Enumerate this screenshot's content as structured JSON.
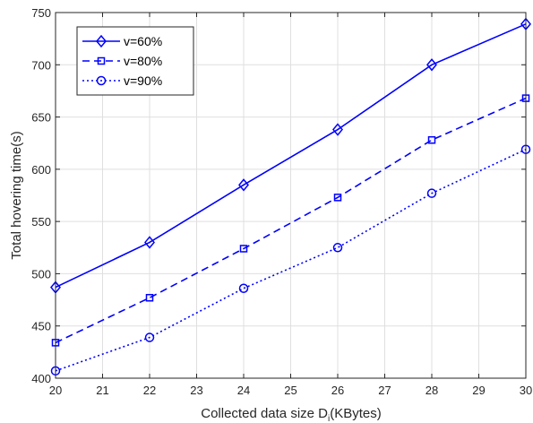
{
  "chart_data": {
    "type": "line",
    "xlabel": "Collected data size D",
    "xlabel_sub": "i",
    "xlabel_suffix": "(KBytes)",
    "ylabel": "Total hovering time(s)",
    "xlim": [
      20,
      30
    ],
    "ylim": [
      400,
      750
    ],
    "xticks": [
      "20",
      "21",
      "22",
      "23",
      "24",
      "25",
      "26",
      "27",
      "28",
      "29",
      "30"
    ],
    "yticks": [
      "400",
      "450",
      "500",
      "550",
      "600",
      "650",
      "700",
      "750"
    ],
    "grid": true,
    "legend_position": "top-left",
    "x": [
      20,
      22,
      24,
      26,
      28,
      30
    ],
    "series": [
      {
        "name": "v=60%",
        "values": [
          487,
          530,
          585,
          638,
          700,
          739
        ],
        "marker": "diamond",
        "line": "solid",
        "color": "#0000ff"
      },
      {
        "name": "v=80%",
        "values": [
          434,
          477,
          524,
          573,
          628,
          668
        ],
        "marker": "square",
        "line": "dashed",
        "color": "#0000ff"
      },
      {
        "name": "v=90%",
        "values": [
          407,
          439,
          486,
          525,
          577,
          619
        ],
        "marker": "circle",
        "line": "dotted",
        "color": "#0000ff"
      }
    ]
  }
}
